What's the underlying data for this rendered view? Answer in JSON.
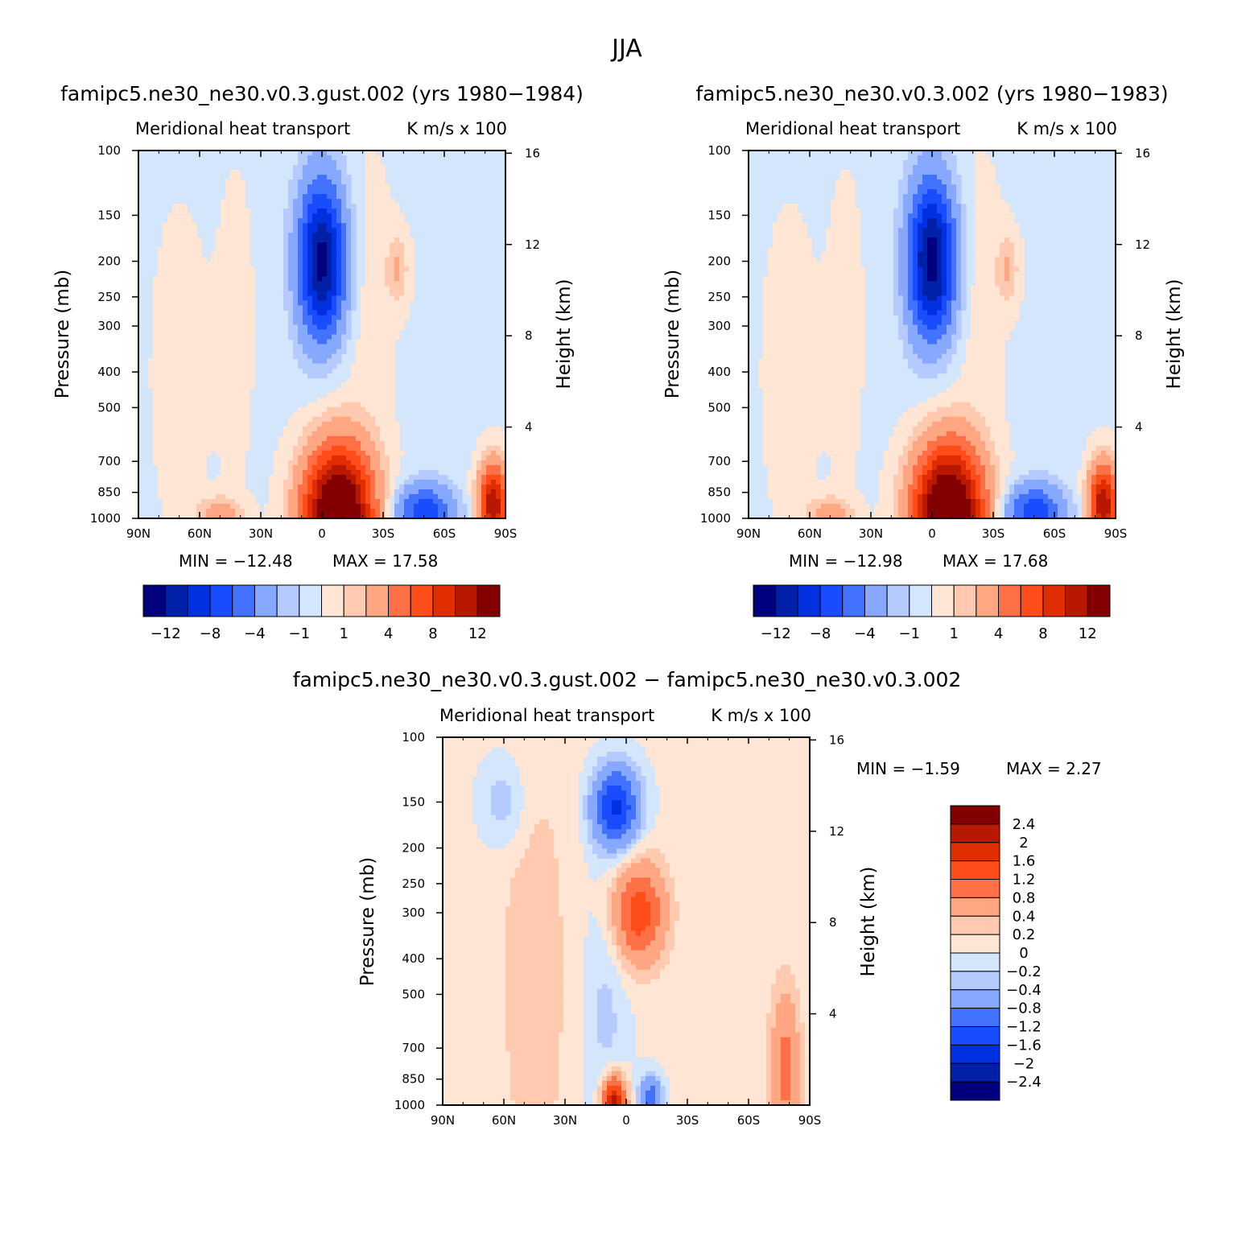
{
  "figure": {
    "title": "JJA"
  },
  "chart_data": [
    {
      "type": "heatmap",
      "panel_title": "famipc5.ne30_ne30.v0.3.gust.002 (yrs 1980−1984)",
      "left_title": "Meridional heat transport",
      "right_title": "K m/s x 100",
      "xlabel": "",
      "ylabel": "Pressure (mb)",
      "y2label": "Height (km)",
      "x_ticks": [
        "90N",
        "60N",
        "30N",
        "0",
        "30S",
        "60S",
        "90S"
      ],
      "y_ticks": [
        "100",
        "150",
        "200",
        "250",
        "300",
        "400",
        "500",
        "700",
        "850",
        "1000"
      ],
      "y2_ticks": [
        "16",
        "12",
        "8",
        "4"
      ],
      "min_label": "MIN = −12.48",
      "max_label": "MAX = 17.58",
      "min": -12.48,
      "max": 17.58,
      "colorbar_labels": [
        "−12",
        "−8",
        "−4",
        "−1",
        "1",
        "4",
        "8",
        "12"
      ],
      "contour_levels": [
        -12,
        -10,
        -8,
        -6,
        -4,
        -2,
        -1,
        0,
        1,
        2,
        4,
        6,
        8,
        10,
        12
      ],
      "features": [
        {
          "lat": 0,
          "p": 200,
          "value": -12.48
        },
        {
          "lat": -10,
          "p": 975,
          "value": 17.58
        },
        {
          "lat": 50,
          "p": 980,
          "value": 3
        },
        {
          "lat": -35,
          "p": 220,
          "value": 1.5
        },
        {
          "lat": -50,
          "p": 970,
          "value": -7
        },
        {
          "lat": -85,
          "p": 900,
          "value": 12
        }
      ]
    },
    {
      "type": "heatmap",
      "panel_title": "famipc5.ne30_ne30.v0.3.002 (yrs 1980−1983)",
      "left_title": "Meridional heat transport",
      "right_title": "K m/s x 100",
      "xlabel": "",
      "ylabel": "Pressure (mb)",
      "y2label": "Height (km)",
      "x_ticks": [
        "90N",
        "60N",
        "30N",
        "0",
        "30S",
        "60S",
        "90S"
      ],
      "y_ticks": [
        "100",
        "150",
        "200",
        "250",
        "300",
        "400",
        "500",
        "700",
        "850",
        "1000"
      ],
      "y2_ticks": [
        "16",
        "12",
        "8",
        "4"
      ],
      "min_label": "MIN = −12.98",
      "max_label": "MAX = 17.68",
      "min": -12.98,
      "max": 17.68,
      "colorbar_labels": [
        "−12",
        "−8",
        "−4",
        "−1",
        "1",
        "4",
        "8",
        "12"
      ],
      "contour_levels": [
        -12,
        -10,
        -8,
        -6,
        -4,
        -2,
        -1,
        0,
        1,
        2,
        4,
        6,
        8,
        10,
        12
      ],
      "features": [
        {
          "lat": 0,
          "p": 200,
          "value": -12.98
        },
        {
          "lat": -10,
          "p": 975,
          "value": 17.68
        },
        {
          "lat": 50,
          "p": 980,
          "value": 3
        },
        {
          "lat": -35,
          "p": 220,
          "value": 1.5
        },
        {
          "lat": -50,
          "p": 970,
          "value": -7
        },
        {
          "lat": -85,
          "p": 900,
          "value": 12
        }
      ]
    },
    {
      "type": "heatmap",
      "panel_title": "famipc5.ne30_ne30.v0.3.gust.002 − famipc5.ne30_ne30.v0.3.002",
      "left_title": "Meridional heat transport",
      "right_title": "K m/s x 100",
      "xlabel": "",
      "ylabel": "Pressure (mb)",
      "y2label": "Height (km)",
      "x_ticks": [
        "90N",
        "60N",
        "30N",
        "0",
        "30S",
        "60S",
        "90S"
      ],
      "y_ticks": [
        "100",
        "150",
        "200",
        "250",
        "300",
        "400",
        "500",
        "700",
        "850",
        "1000"
      ],
      "y2_ticks": [
        "16",
        "12",
        "8",
        "4"
      ],
      "min_label": "MIN = −1.59",
      "max_label": "MAX = 2.27",
      "min": -1.59,
      "max": 2.27,
      "colorbar_labels": [
        "2.4",
        "2",
        "1.6",
        "1.2",
        "0.8",
        "0.4",
        "0.2",
        "0",
        "−0.2",
        "−0.4",
        "−0.8",
        "−1.2",
        "−1.6",
        "−2",
        "−2.4"
      ],
      "contour_levels": [
        -2.4,
        -2,
        -1.6,
        -1.2,
        -0.8,
        -0.4,
        -0.2,
        0,
        0.2,
        0.4,
        0.8,
        1.2,
        1.6,
        2,
        2.4
      ],
      "features": [
        {
          "lat": 5,
          "p": 160,
          "value": -1.59
        },
        {
          "lat": 5,
          "p": 980,
          "value": 2.27
        },
        {
          "lat": -5,
          "p": 300,
          "value": 1.2
        },
        {
          "lat": -10,
          "p": 950,
          "value": -1
        },
        {
          "lat": -78,
          "p": 850,
          "value": 0.8
        }
      ]
    }
  ],
  "colors": {
    "palette": [
      "#00007f",
      "#0020a8",
      "#0030e0",
      "#1a4cff",
      "#4272ff",
      "#86a8ff",
      "#b5caff",
      "#d4e6fc",
      "#ffe6d4",
      "#ffcab0",
      "#ffa682",
      "#ff7046",
      "#ff4d1a",
      "#e02e00",
      "#b81800",
      "#820000"
    ]
  }
}
